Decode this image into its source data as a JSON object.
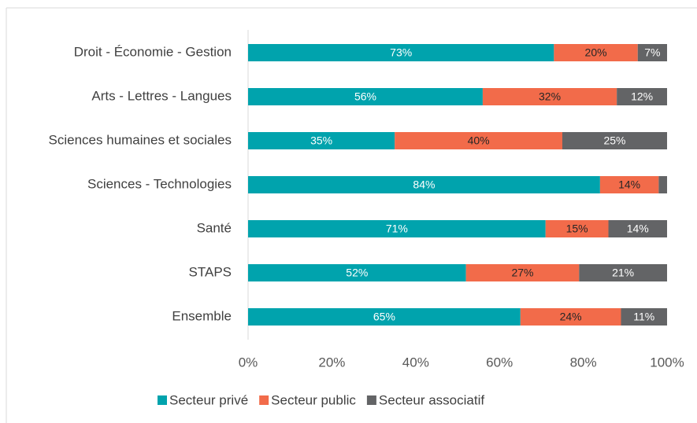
{
  "chart_data": {
    "type": "stacked_barh",
    "categories": [
      "Droit - Économie - Gestion",
      "Arts - Lettres - Langues",
      "Sciences humaines et sociales",
      "Sciences - Technologies",
      "Santé",
      "STAPS",
      "Ensemble"
    ],
    "series": [
      {
        "name": "Secteur privé",
        "color": "#00a3ad",
        "label_color": "#ffffff",
        "values": [
          73,
          56,
          35,
          84,
          71,
          52,
          65
        ],
        "value_labels": [
          "73%",
          "56%",
          "35%",
          "84%",
          "71%",
          "52%",
          "65%"
        ]
      },
      {
        "name": "Secteur public",
        "color": "#f26b4a",
        "label_color": "#262626",
        "values": [
          20,
          32,
          40,
          14,
          15,
          27,
          24
        ],
        "value_labels": [
          "20%",
          "32%",
          "40%",
          "14%",
          "15%",
          "27%",
          "24%"
        ]
      },
      {
        "name": "Secteur associatif",
        "color": "#636466",
        "label_color": "#ffffff",
        "values": [
          7,
          12,
          25,
          2,
          14,
          21,
          11
        ],
        "value_labels": [
          "7%",
          "12%",
          "25%",
          null,
          "14%",
          "21%",
          "11%"
        ]
      }
    ],
    "xlim": [
      0,
      100
    ],
    "xticks": [
      {
        "value": 0,
        "label": "0%"
      },
      {
        "value": 20,
        "label": "20%"
      },
      {
        "value": 40,
        "label": "40%"
      },
      {
        "value": 60,
        "label": "60%"
      },
      {
        "value": 80,
        "label": "80%"
      },
      {
        "value": 100,
        "label": "100%"
      }
    ],
    "legend": "bottom"
  }
}
